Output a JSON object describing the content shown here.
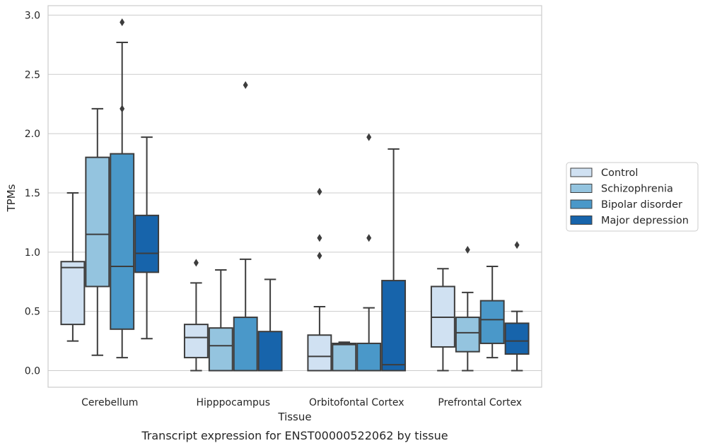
{
  "chart_data": {
    "type": "box",
    "xlabel": "Tissue",
    "ylabel": "TPMs",
    "caption": "Transcript expression for ENST00000522062 by tissue",
    "ylim": [
      -0.14,
      3.08
    ],
    "yticks": [
      0.0,
      0.5,
      1.0,
      1.5,
      2.0,
      2.5,
      3.0
    ],
    "ytick_labels": [
      "0.0",
      "0.5",
      "1.0",
      "1.5",
      "2.0",
      "2.5",
      "3.0"
    ],
    "categories": [
      "Cerebellum",
      "Hipppocampus",
      "Orbitofontal Cortex",
      "Prefrontal Cortex"
    ],
    "grid": true,
    "legend_position": "right",
    "series": [
      {
        "name": "Control",
        "color": "#d0e1f2",
        "boxes": [
          {
            "whislo": 0.25,
            "q1": 0.39,
            "med": 0.87,
            "q3": 0.92,
            "whishi": 1.5,
            "fliers": []
          },
          {
            "whislo": 0.0,
            "q1": 0.11,
            "med": 0.28,
            "q3": 0.39,
            "whishi": 0.74,
            "fliers": [
              0.91
            ]
          },
          {
            "whislo": 0.0,
            "q1": 0.0,
            "med": 0.12,
            "q3": 0.3,
            "whishi": 0.54,
            "fliers": [
              1.51,
              1.12,
              0.97
            ]
          },
          {
            "whislo": 0.0,
            "q1": 0.2,
            "med": 0.45,
            "q3": 0.71,
            "whishi": 0.86,
            "fliers": []
          }
        ]
      },
      {
        "name": "Schizophrenia",
        "color": "#94c4df",
        "boxes": [
          {
            "whislo": 0.13,
            "q1": 0.71,
            "med": 1.15,
            "q3": 1.8,
            "whishi": 2.21,
            "fliers": []
          },
          {
            "whislo": 0.0,
            "q1": 0.0,
            "med": 0.21,
            "q3": 0.36,
            "whishi": 0.85,
            "fliers": []
          },
          {
            "whislo": 0.0,
            "q1": 0.0,
            "med": 0.22,
            "q3": 0.23,
            "whishi": 0.24,
            "fliers": []
          },
          {
            "whislo": 0.0,
            "q1": 0.16,
            "med": 0.32,
            "q3": 0.45,
            "whishi": 0.66,
            "fliers": [
              1.02
            ]
          }
        ]
      },
      {
        "name": "Bipolar disorder",
        "color": "#4a98c9",
        "boxes": [
          {
            "whislo": 0.11,
            "q1": 0.35,
            "med": 0.88,
            "q3": 1.83,
            "whishi": 2.77,
            "fliers": [
              2.21,
              2.94
            ]
          },
          {
            "whislo": 0.0,
            "q1": 0.0,
            "med": 0.0,
            "q3": 0.45,
            "whishi": 0.94,
            "fliers": [
              2.41
            ]
          },
          {
            "whislo": 0.0,
            "q1": 0.0,
            "med": 0.0,
            "q3": 0.23,
            "whishi": 0.53,
            "fliers": [
              1.97,
              1.12
            ]
          },
          {
            "whislo": 0.11,
            "q1": 0.23,
            "med": 0.43,
            "q3": 0.59,
            "whishi": 0.88,
            "fliers": []
          }
        ]
      },
      {
        "name": "Major depression",
        "color": "#1764ab",
        "boxes": [
          {
            "whislo": 0.27,
            "q1": 0.83,
            "med": 0.99,
            "q3": 1.31,
            "whishi": 1.97,
            "fliers": []
          },
          {
            "whislo": 0.0,
            "q1": 0.0,
            "med": 0.0,
            "q3": 0.33,
            "whishi": 0.77,
            "fliers": []
          },
          {
            "whislo": 0.0,
            "q1": 0.0,
            "med": 0.05,
            "q3": 0.76,
            "whishi": 1.87,
            "fliers": []
          },
          {
            "whislo": 0.0,
            "q1": 0.14,
            "med": 0.25,
            "q3": 0.4,
            "whishi": 0.5,
            "fliers": [
              1.06
            ]
          }
        ]
      }
    ]
  }
}
